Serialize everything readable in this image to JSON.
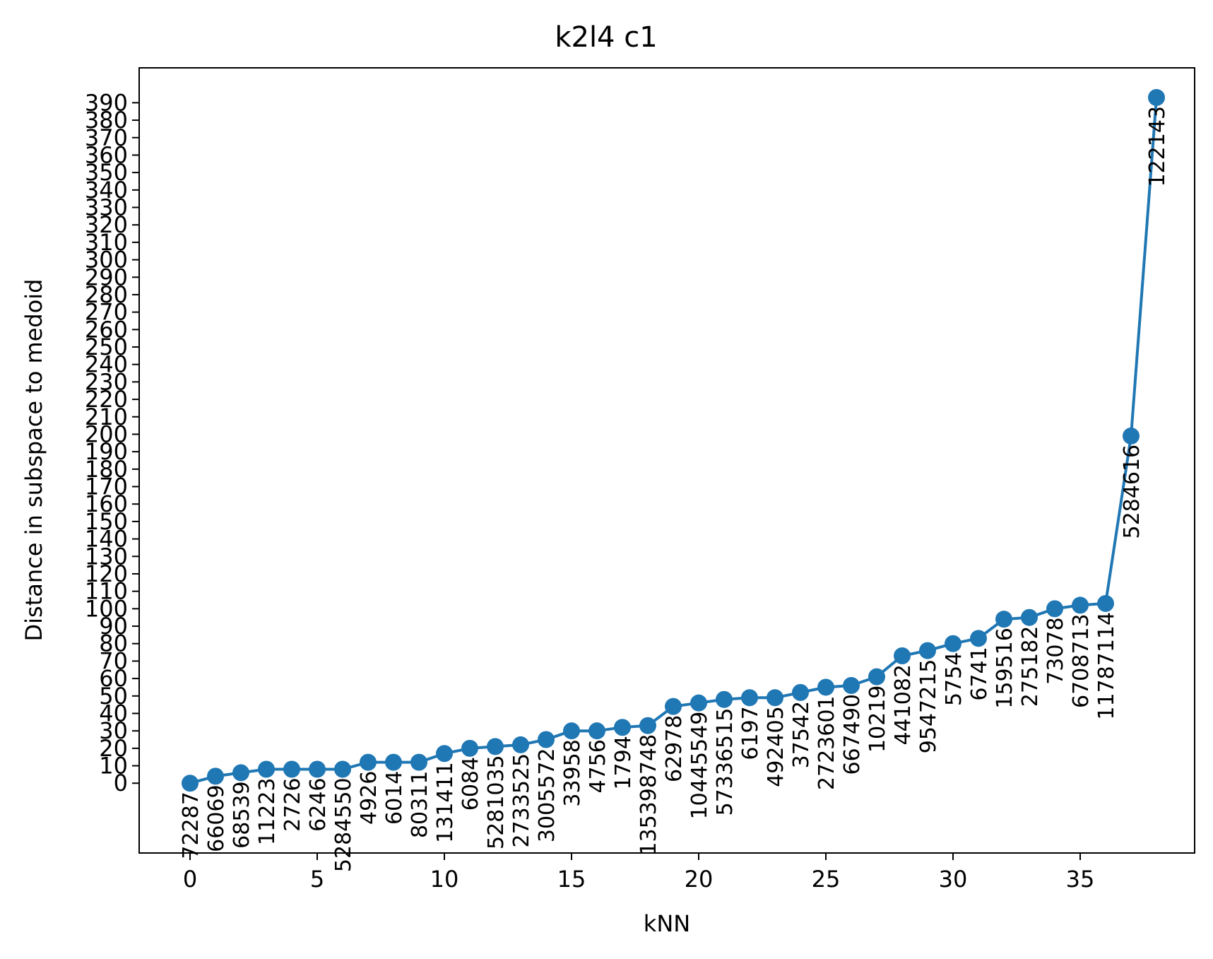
{
  "chart_data": {
    "type": "line",
    "title": "k2l4 c1",
    "xlabel": "kNN",
    "ylabel": "Distance in subspace to medoid",
    "xlim": [
      -2,
      39.5
    ],
    "ylim": [
      -40,
      410
    ],
    "xticks": [
      0,
      5,
      10,
      15,
      20,
      25,
      30,
      35
    ],
    "yticks": [
      0,
      10,
      20,
      30,
      40,
      50,
      60,
      70,
      80,
      90,
      100,
      110,
      120,
      130,
      140,
      150,
      160,
      170,
      180,
      190,
      200,
      210,
      220,
      230,
      240,
      250,
      260,
      270,
      280,
      290,
      300,
      310,
      320,
      330,
      340,
      350,
      360,
      370,
      380,
      390
    ],
    "grid": false,
    "series_color": "#1f77b4",
    "x": [
      0,
      1,
      2,
      3,
      4,
      5,
      6,
      7,
      8,
      9,
      10,
      11,
      12,
      13,
      14,
      15,
      16,
      17,
      18,
      19,
      20,
      21,
      22,
      23,
      24,
      25,
      26,
      27,
      28,
      29,
      30,
      31,
      32,
      33,
      34,
      35,
      36,
      37,
      38
    ],
    "values": [
      0,
      4,
      6,
      8,
      8,
      8,
      8,
      12,
      12,
      12,
      17,
      20,
      21,
      22,
      25,
      30,
      30,
      32,
      33,
      44,
      46,
      48,
      49,
      49,
      52,
      55,
      56,
      61,
      73,
      76,
      80,
      83,
      94,
      95,
      100,
      102,
      103,
      199,
      393
    ],
    "labels": [
      "72287",
      "66069",
      "68539",
      "11223",
      "2726",
      "6246",
      "5284550",
      "4926",
      "6014",
      "80311",
      "131411",
      "6084",
      "5281035",
      "2733525",
      "3005572",
      "33958",
      "4756",
      "1794",
      "135398748",
      "62978",
      "10445549",
      "57336515",
      "6197",
      "492405",
      "37542",
      "2723601",
      "667490",
      "10219",
      "441082",
      "9547215",
      "5754",
      "6741",
      "159516",
      "275182",
      "73078",
      "6708713",
      "11787114",
      "5284616",
      "122143"
    ]
  }
}
